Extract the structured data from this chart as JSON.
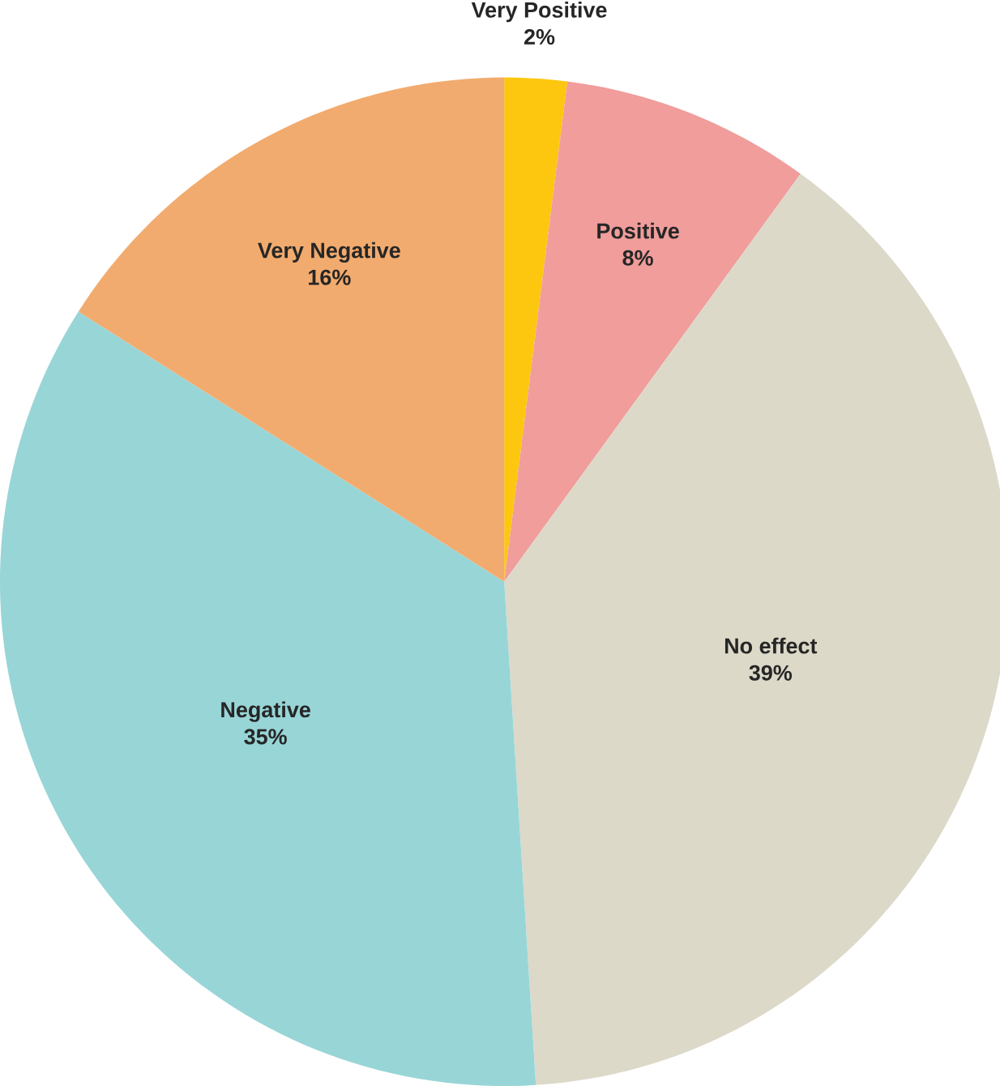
{
  "chart_data": {
    "type": "pie",
    "categories": [
      "Very Positive",
      "Positive",
      "No effect",
      "Negative",
      "Very Negative"
    ],
    "values": [
      2,
      8,
      39,
      35,
      16
    ],
    "value_labels": [
      "2%",
      "8%",
      "39%",
      "35%",
      "16%"
    ],
    "colors": [
      "#fdc70f",
      "#f09d9b",
      "#dcd9c9",
      "#98d5d7",
      "#f2ab6e"
    ]
  }
}
